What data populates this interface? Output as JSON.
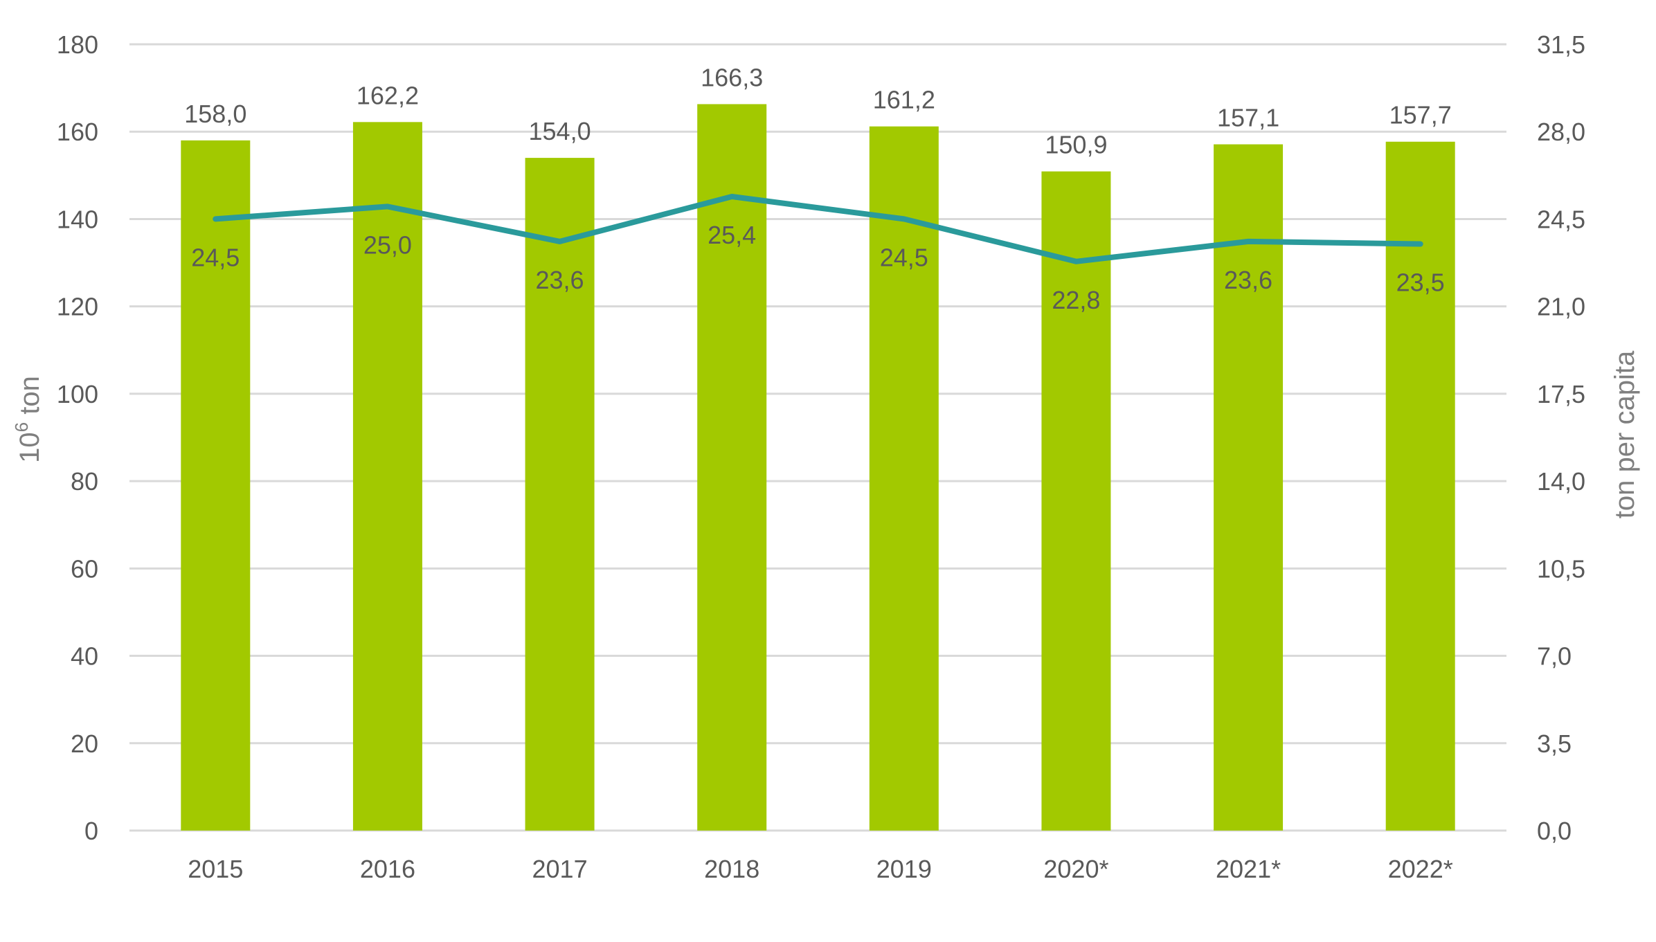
{
  "chart_data": {
    "type": "bar+line",
    "categories": [
      "2015",
      "2016",
      "2017",
      "2018",
      "2019",
      "2020*",
      "2021*",
      "2022*"
    ],
    "series": [
      {
        "type": "bar",
        "axis": "left",
        "values": [
          158.0,
          162.2,
          154.0,
          166.3,
          161.2,
          150.9,
          157.1,
          157.7
        ],
        "labels": [
          "158,0",
          "162,2",
          "154,0",
          "166,3",
          "161,2",
          "150,9",
          "157,1",
          "157,7"
        ],
        "color": "#a2c900"
      },
      {
        "type": "line",
        "axis": "right",
        "values": [
          24.5,
          25.0,
          23.6,
          25.4,
          24.5,
          22.8,
          23.6,
          23.5
        ],
        "labels": [
          "24,5",
          "25,0",
          "23,6",
          "25,4",
          "24,5",
          "22,8",
          "23,6",
          "23,5"
        ],
        "color": "#2a9a9b"
      }
    ],
    "ylabel_left": "10⁶ ton",
    "ylabel_left_base": "10",
    "ylabel_left_sup": "6",
    "ylabel_left_unit": " ton",
    "ylabel_right": "ton per capita",
    "ylim_left": [
      0,
      180
    ],
    "ylim_right": [
      0,
      31.5
    ],
    "left_ticks": [
      "0",
      "20",
      "40",
      "60",
      "80",
      "100",
      "120",
      "140",
      "160",
      "180"
    ],
    "right_ticks": [
      "0,0",
      "3,5",
      "7,0",
      "10,5",
      "14,0",
      "17,5",
      "21,0",
      "24,5",
      "28,0",
      "31,5"
    ],
    "grid": true,
    "gridline_color": "#d9d9d9",
    "legend": "none"
  }
}
